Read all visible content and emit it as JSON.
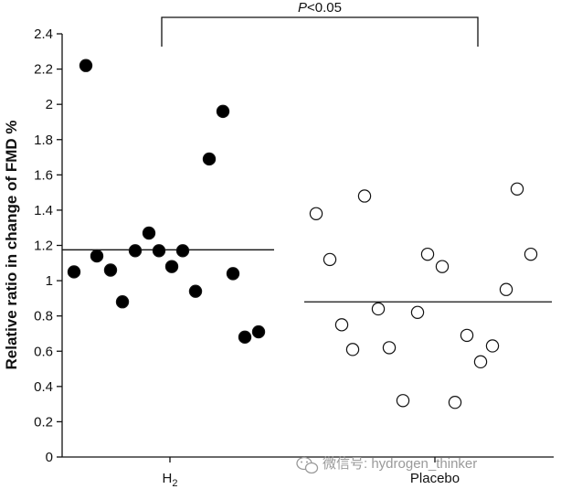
{
  "chart_data": {
    "type": "scatter",
    "ylabel": "Relative ratio in change of FMD %",
    "ylim": [
      0,
      2.4
    ],
    "yticks": [
      "0",
      "0.2",
      "0.4",
      "0.6",
      "0.8",
      "1",
      "1.2",
      "1.4",
      "1.6",
      "1.8",
      "2",
      "2.2",
      "2.4"
    ],
    "categories": [
      "H2",
      "Placebo"
    ],
    "category_label_main": [
      "H",
      "Placebo"
    ],
    "category_label_sub": [
      "2",
      ""
    ],
    "annotation": {
      "italic": "P",
      "rest": "<0.05"
    },
    "marker_colors": {
      "H2": "#000000",
      "Placebo": "#ffffff"
    },
    "series": [
      {
        "group": "H2",
        "mean": 1.175,
        "points": [
          2.22,
          1.05,
          1.14,
          1.06,
          0.88,
          1.17,
          1.27,
          1.17,
          1.08,
          1.17,
          0.94,
          1.69,
          1.96,
          1.04,
          0.68,
          0.71
        ]
      },
      {
        "group": "Placebo",
        "mean": 0.88,
        "points": [
          1.38,
          1.12,
          0.75,
          0.61,
          1.48,
          0.84,
          0.62,
          0.32,
          0.82,
          1.15,
          1.08,
          0.31,
          0.69,
          0.54,
          0.63,
          0.95,
          1.52,
          1.15
        ]
      }
    ]
  },
  "watermark": {
    "icon": "wechat-icon",
    "text": "微信号: hydrogen_thinker"
  }
}
